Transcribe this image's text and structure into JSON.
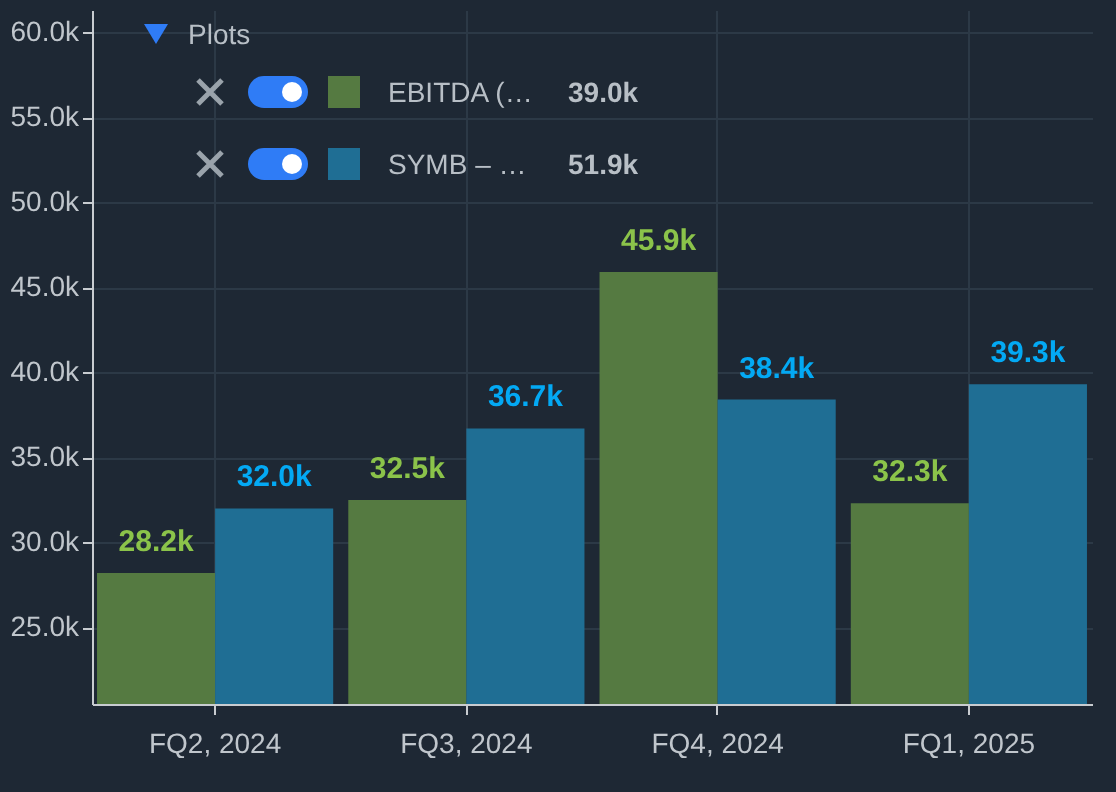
{
  "chart_data": {
    "type": "bar",
    "categories": [
      "FQ2, 2024",
      "FQ3, 2024",
      "FQ4, 2024",
      "FQ1, 2025"
    ],
    "series": [
      {
        "name": "EBITDA (…",
        "color": "#557a41",
        "values": [
          28.2,
          32.5,
          45.9,
          32.3
        ],
        "value_labels": [
          "28.2k",
          "32.5k",
          "45.9k",
          "32.3k"
        ]
      },
      {
        "name": "SYMB – …",
        "color": "#1f6e94",
        "values": [
          32.0,
          36.7,
          38.4,
          39.3
        ],
        "value_labels": [
          "32.0k",
          "36.7k",
          "38.4k",
          "39.3k"
        ]
      }
    ],
    "ylim": [
      20.5,
      61.3
    ],
    "yticks": [
      {
        "value": 25,
        "label": "25.0k"
      },
      {
        "value": 30,
        "label": "30.0k"
      },
      {
        "value": 35,
        "label": "35.0k"
      },
      {
        "value": 40,
        "label": "40.0k"
      },
      {
        "value": 45,
        "label": "45.0k"
      },
      {
        "value": 50,
        "label": "50.0k"
      },
      {
        "value": 55,
        "label": "55.0k"
      },
      {
        "value": 60,
        "label": "60.0k"
      }
    ],
    "legend_title": "Plots",
    "annotations": [
      "39.0k",
      "51.9k"
    ],
    "legend": "top left",
    "grid": true
  }
}
